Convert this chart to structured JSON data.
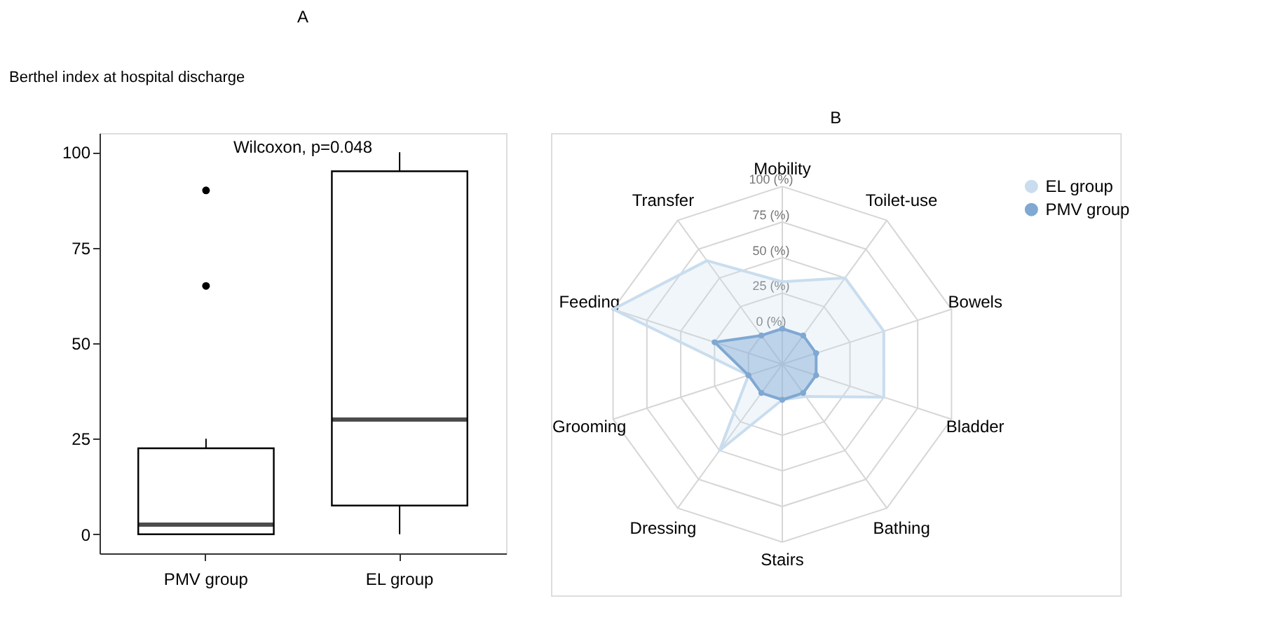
{
  "chart_data": [
    {
      "type": "box",
      "title": "A",
      "ylabel": "Berthel index at hospital discharge",
      "categories": [
        "PMV group",
        "EL group"
      ],
      "boxes": [
        {
          "low": 0,
          "q1": 0,
          "median": 2.5,
          "q3": 22.5,
          "high": 25,
          "outliers": [
            65,
            90
          ]
        },
        {
          "low": 0,
          "q1": 7.5,
          "median": 30,
          "q3": 95,
          "high": 100
        }
      ],
      "ylim": [
        -5,
        105
      ],
      "yticks": [
        0,
        25,
        50,
        75,
        100
      ],
      "grid": false,
      "annotations": [
        "Wilcoxon, p=0.048"
      ]
    },
    {
      "type": "radar",
      "title": "B",
      "categories": [
        "Mobility",
        "Toilet-use",
        "Bowels",
        "Bladder",
        "Bathing",
        "Stairs",
        "Dressing",
        "Grooming",
        "Feeding",
        "Transfer"
      ],
      "series": [
        {
          "name": "EL group",
          "color": "#c9ddee",
          "values": [
            33,
            50,
            50,
            50,
            3,
            0,
            50,
            0,
            100,
            65
          ]
        },
        {
          "name": "PMV group",
          "color": "#7fa8d2",
          "marker": "circle",
          "values": [
            0,
            0,
            0,
            0,
            0,
            0,
            0,
            0,
            25,
            0
          ]
        }
      ],
      "ylim": [
        -25,
        100
      ],
      "yticks": [
        {
          "value": 0,
          "label": "0 (%)"
        },
        {
          "value": 25,
          "label": "25 (%)"
        },
        {
          "value": 50,
          "label": "50 (%)"
        },
        {
          "value": 75,
          "label": "75 (%)"
        },
        {
          "value": 100,
          "label": "100 (%)"
        }
      ],
      "grid": true,
      "legend": "top right"
    }
  ]
}
